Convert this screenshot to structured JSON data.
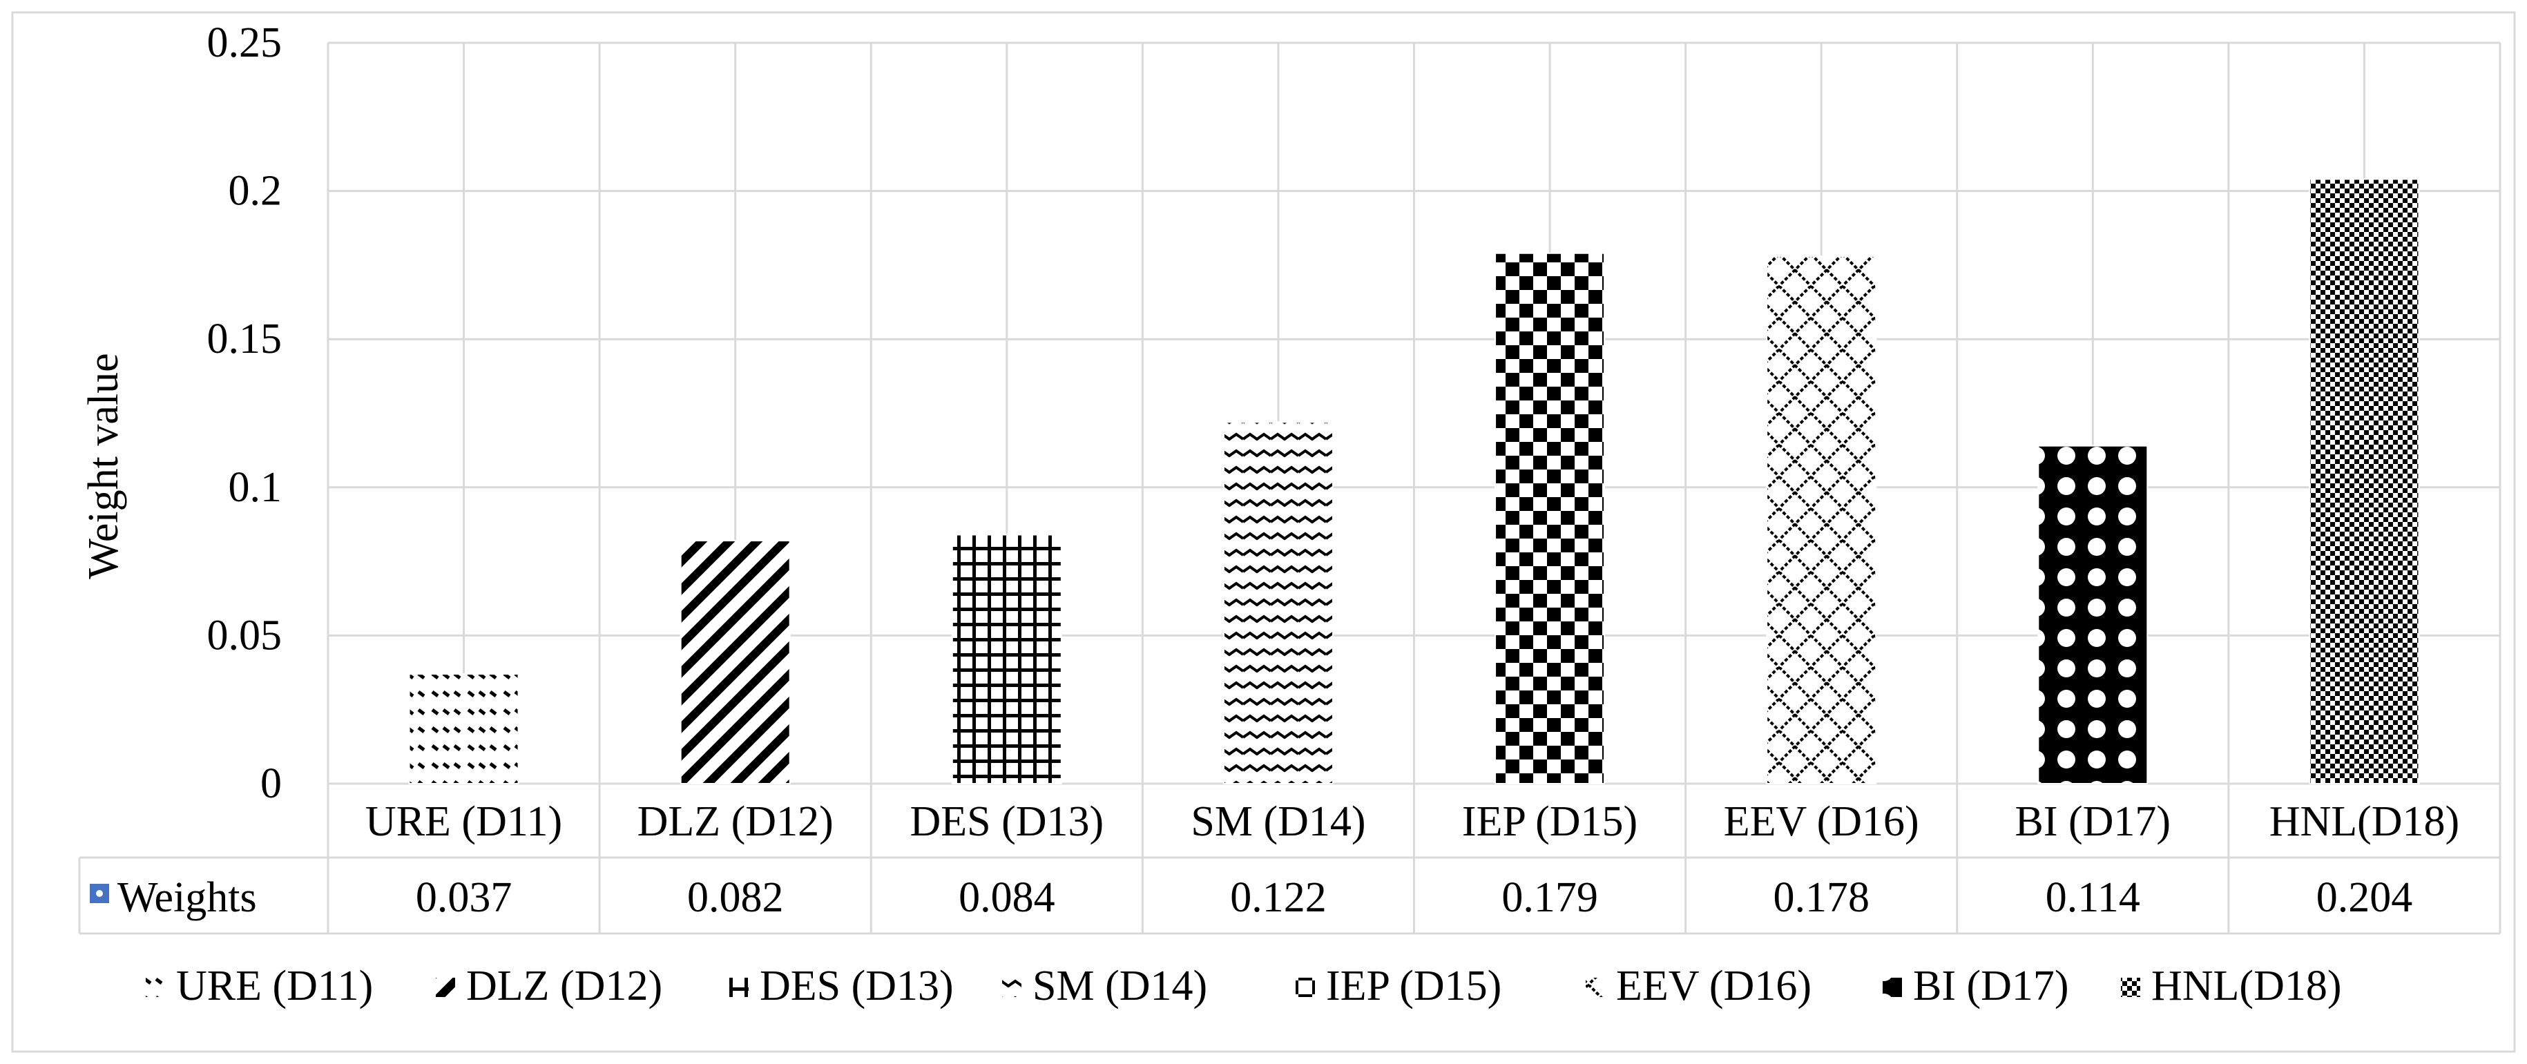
{
  "chart_data": {
    "type": "bar",
    "title": "",
    "xlabel": "",
    "ylabel": "Weight value",
    "ylim": [
      0,
      0.25
    ],
    "yticks": [
      "0",
      "0.05",
      "0.1",
      "0.15",
      "0.2",
      "0.25"
    ],
    "grid": true,
    "categories": [
      "URE (D11)",
      "DLZ (D12)",
      "DES (D13)",
      "SM (D14)",
      "IEP (D15)",
      "EEV (D16)",
      "BI (D17)",
      "HNL(D18)"
    ],
    "series": [
      {
        "name": "Weights",
        "values": [
          0.037,
          0.082,
          0.084,
          0.122,
          0.179,
          0.178,
          0.114,
          0.204
        ],
        "value_labels": [
          "0.037",
          "0.082",
          "0.084",
          "0.122",
          "0.179",
          "0.178",
          "0.114",
          "0.204"
        ]
      }
    ],
    "patterns": [
      "dots-rows",
      "diagonal",
      "grid",
      "wave",
      "checker",
      "diamond-lattice",
      "dots-large",
      "fine-checker"
    ],
    "legend_position": "bottom",
    "legend_entries": [
      "URE (D11)",
      "DLZ (D12)",
      "DES (D13)",
      "SM (D14)",
      "IEP (D15)",
      "EEV (D16)",
      "BI (D17)",
      "HNL(D18)"
    ],
    "data_table": true,
    "colors": {
      "grid": "#d9d9d9",
      "bars": "#000000",
      "table_key": "#4472c4",
      "border": "#d9d9d9"
    }
  }
}
